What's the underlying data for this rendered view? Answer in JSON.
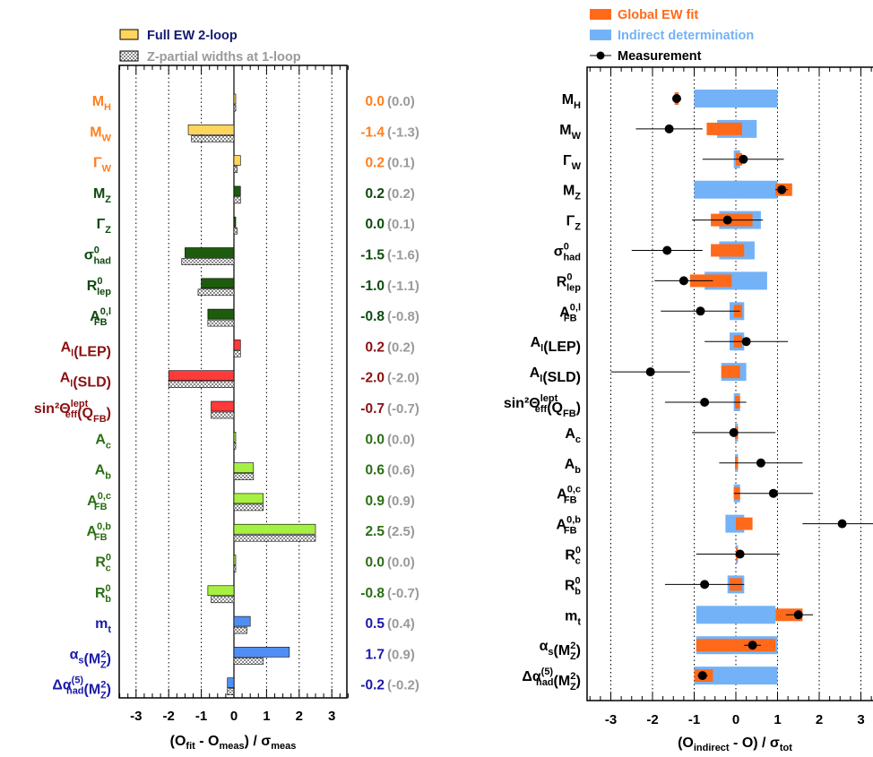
{
  "colors": {
    "higgs": "#ff7f1e",
    "wmass": "#ff7f1e",
    "zpole": "#0e4a0e",
    "lep_asym": "#8b1010",
    "heavy": "#2a6e12",
    "input": "#1a1aa8",
    "bar_orange_light": "#ffd55e",
    "bar_darkgreen": "#1d5c0c",
    "bar_red": "#ff3a3a",
    "bar_lightgreen": "#a6f043",
    "bar_blue": "#4f8ff5",
    "fit_orange": "#ff6a1a",
    "indirect_blue": "#74b2f7",
    "one_loop_gray": "#9a9a9a"
  },
  "chart_data": [
    {
      "type": "bar",
      "orientation": "horizontal",
      "legend": {
        "position": "top",
        "entries": [
          "Full EW 2-loop",
          "Z-partial widths at 1-loop"
        ]
      },
      "xlim": [
        -3.8,
        3.8
      ],
      "x_ticks": [
        "-3",
        "-2",
        "-1",
        "0",
        "1",
        "2",
        "3"
      ],
      "x_ticks_values": [
        -3,
        -2,
        -1,
        0,
        1,
        2,
        3
      ],
      "grid": "vertical dotted",
      "xlabel": {
        "main": "(O",
        "sub1": "fit",
        "mid": " - O",
        "sub2": "meas",
        "end": ") /  σ",
        "sub3": "meas"
      },
      "rows": [
        {
          "group": "higgs",
          "name": "M",
          "sub": "H",
          "sup": "",
          "after": "",
          "value": 0.0,
          "value_1loop": 0.0,
          "value_text": "0.0",
          "one_loop_text": "(0.0)",
          "bar_color": "bar_orange_light"
        },
        {
          "group": "wmass",
          "name": "M",
          "sub": "W",
          "sup": "",
          "after": "",
          "value": -1.4,
          "value_1loop": -1.3,
          "value_text": "-1.4",
          "one_loop_text": "(-1.3)",
          "bar_color": "bar_orange_light"
        },
        {
          "group": "wmass",
          "name": "Γ",
          "sub": "W",
          "sup": "",
          "after": "",
          "value": 0.2,
          "value_1loop": 0.1,
          "value_text": "0.2",
          "one_loop_text": "(0.1)",
          "bar_color": "bar_orange_light"
        },
        {
          "group": "zpole",
          "name": "M",
          "sub": "Z",
          "sup": "",
          "after": "",
          "value": 0.2,
          "value_1loop": 0.2,
          "value_text": "0.2",
          "one_loop_text": "(0.2)",
          "bar_color": "bar_darkgreen"
        },
        {
          "group": "zpole",
          "name": "Γ",
          "sub": "Z",
          "sup": "",
          "after": "",
          "value": 0.0,
          "value_1loop": 0.1,
          "value_text": "0.0",
          "one_loop_text": "(0.1)",
          "bar_color": "bar_darkgreen"
        },
        {
          "group": "zpole",
          "name": "σ",
          "sub": "had",
          "sup": "0",
          "after": "",
          "value": -1.5,
          "value_1loop": -1.6,
          "value_text": "-1.5",
          "one_loop_text": "(-1.6)",
          "bar_color": "bar_darkgreen"
        },
        {
          "group": "zpole",
          "name": "R",
          "sub": "lep",
          "sup": "0",
          "after": "",
          "value": -1.0,
          "value_1loop": -1.1,
          "value_text": "-1.0",
          "one_loop_text": "(-1.1)",
          "bar_color": "bar_darkgreen"
        },
        {
          "group": "zpole",
          "name": "A",
          "sub": "FB",
          "sup": "0,l",
          "after": "",
          "value": -0.8,
          "value_1loop": -0.8,
          "value_text": "-0.8",
          "one_loop_text": "(-0.8)",
          "bar_color": "bar_darkgreen"
        },
        {
          "group": "lep_asym",
          "name": "A",
          "sub": "l",
          "sup": "",
          "after": "(LEP)",
          "value": 0.2,
          "value_1loop": 0.2,
          "value_text": "0.2",
          "one_loop_text": "(0.2)",
          "bar_color": "bar_red"
        },
        {
          "group": "lep_asym",
          "name": "A",
          "sub": "l",
          "sup": "",
          "after": "(SLD)",
          "value": -2.0,
          "value_1loop": -2.0,
          "value_text": "-2.0",
          "one_loop_text": "(-2.0)",
          "bar_color": "bar_red"
        },
        {
          "group": "lep_asym",
          "name": "sin²Θ",
          "sub": "eff",
          "sup": "lept",
          "after": "(Q",
          "after_sub": "FB",
          "after_end": ")",
          "value": -0.7,
          "value_1loop": -0.7,
          "value_text": "-0.7",
          "one_loop_text": "(-0.7)",
          "bar_color": "bar_red"
        },
        {
          "group": "heavy",
          "name": "A",
          "sub": "c",
          "sup": "",
          "after": "",
          "value": 0.0,
          "value_1loop": 0.0,
          "value_text": "0.0",
          "one_loop_text": "(0.0)",
          "bar_color": "bar_lightgreen"
        },
        {
          "group": "heavy",
          "name": "A",
          "sub": "b",
          "sup": "",
          "after": "",
          "value": 0.6,
          "value_1loop": 0.6,
          "value_text": "0.6",
          "one_loop_text": "(0.6)",
          "bar_color": "bar_lightgreen"
        },
        {
          "group": "heavy",
          "name": "A",
          "sub": "FB",
          "sup": "0,c",
          "after": "",
          "value": 0.9,
          "value_1loop": 0.9,
          "value_text": "0.9",
          "one_loop_text": "(0.9)",
          "bar_color": "bar_lightgreen"
        },
        {
          "group": "heavy",
          "name": "A",
          "sub": "FB",
          "sup": "0,b",
          "after": "",
          "value": 2.5,
          "value_1loop": 2.5,
          "value_text": "2.5",
          "one_loop_text": "(2.5)",
          "bar_color": "bar_lightgreen"
        },
        {
          "group": "heavy",
          "name": "R",
          "sub": "c",
          "sup": "0",
          "after": "",
          "value": 0.0,
          "value_1loop": 0.0,
          "value_text": "0.0",
          "one_loop_text": "(0.0)",
          "bar_color": "bar_lightgreen"
        },
        {
          "group": "heavy",
          "name": "R",
          "sub": "b",
          "sup": "0",
          "after": "",
          "value": -0.8,
          "value_1loop": -0.7,
          "value_text": "-0.8",
          "one_loop_text": "(-0.7)",
          "bar_color": "bar_lightgreen"
        },
        {
          "group": "input",
          "name": "m",
          "sub": "t",
          "sup": "",
          "after": "",
          "value": 0.5,
          "value_1loop": 0.4,
          "value_text": "0.5",
          "one_loop_text": "(0.4)",
          "bar_color": "bar_blue"
        },
        {
          "group": "input",
          "name": "α",
          "sub": "s",
          "sup": "",
          "after": "(M",
          "after_sup": "2",
          "after_sub": "Z",
          "after_end": ")",
          "value": 1.7,
          "value_1loop": 0.9,
          "value_text": "1.7",
          "one_loop_text": "(0.9)",
          "bar_color": "bar_blue"
        },
        {
          "group": "input",
          "name": "Δα",
          "sub": "had",
          "sup": "(5)",
          "after": "(M",
          "after_sup": "2",
          "after_sub": "Z",
          "after_end": ")",
          "value": -0.2,
          "value_1loop": -0.2,
          "value_text": "-0.2",
          "one_loop_text": "(-0.2)",
          "bar_color": "bar_blue"
        }
      ]
    },
    {
      "type": "scatter",
      "orientation": "horizontal",
      "legend": {
        "position": "top",
        "entries": [
          "Global EW fit",
          "Indirect determination",
          "Measurement"
        ]
      },
      "xlim": [
        -3.8,
        3.8
      ],
      "x_ticks": [
        "-3",
        "-2",
        "-1",
        "0",
        "1",
        "2",
        "3"
      ],
      "x_ticks_values": [
        -3,
        -2,
        -1,
        0,
        1,
        2,
        3
      ],
      "grid": "vertical dotted",
      "xlabel": {
        "main": "(O",
        "sub1": "indirect",
        "mid": " - O) /  σ",
        "sub2": "tot"
      },
      "rows": [
        {
          "name": "M",
          "sub": "H",
          "sup": "",
          "after": "",
          "fit": [
            -1.47,
            -1.37
          ],
          "indirect": [
            -1.0,
            1.0
          ],
          "meas": -1.42,
          "meas_err": [
            -1.45,
            -1.39
          ]
        },
        {
          "name": "M",
          "sub": "W",
          "sup": "",
          "after": "",
          "fit": [
            -0.7,
            0.15
          ],
          "indirect": [
            -0.45,
            0.5
          ],
          "meas": -1.6,
          "meas_err": [
            -2.4,
            -0.8
          ]
        },
        {
          "name": "Γ",
          "sub": "W",
          "sup": "",
          "after": "",
          "fit": [
            0.0,
            0.15
          ],
          "indirect": [
            -0.05,
            0.1
          ],
          "meas": 0.18,
          "meas_err": [
            -0.8,
            1.15
          ]
        },
        {
          "name": "M",
          "sub": "Z",
          "sup": "",
          "after": "",
          "fit": [
            0.95,
            1.35
          ],
          "indirect": [
            -1.0,
            1.0
          ],
          "meas": 1.1,
          "meas_err": [
            0.95,
            1.25
          ]
        },
        {
          "name": "Γ",
          "sub": "Z",
          "sup": "",
          "after": "",
          "fit": [
            -0.6,
            0.4
          ],
          "indirect": [
            -0.4,
            0.6
          ],
          "meas": -0.2,
          "meas_err": [
            -1.05,
            0.65
          ]
        },
        {
          "name": "σ",
          "sub": "had",
          "sup": "0",
          "after": "",
          "fit": [
            -0.6,
            0.2
          ],
          "indirect": [
            -0.4,
            0.45
          ],
          "meas": -1.65,
          "meas_err": [
            -2.5,
            -0.8
          ]
        },
        {
          "name": "R",
          "sub": "lep",
          "sup": "0",
          "after": "",
          "fit": [
            -1.1,
            -0.1
          ],
          "indirect": [
            -0.75,
            0.75
          ],
          "meas": -1.25,
          "meas_err": [
            -1.95,
            -0.55
          ]
        },
        {
          "name": "A",
          "sub": "FB",
          "sup": "0,l",
          "after": "",
          "fit": [
            -0.05,
            0.15
          ],
          "indirect": [
            -0.15,
            0.2
          ],
          "meas": -0.85,
          "meas_err": [
            -1.8,
            0.1
          ]
        },
        {
          "name": "A",
          "sub": "l",
          "sup": "",
          "after": "(LEP)",
          "fit": [
            -0.05,
            0.15
          ],
          "indirect": [
            -0.15,
            0.2
          ],
          "meas": 0.25,
          "meas_err": [
            -0.75,
            1.25
          ]
        },
        {
          "name": "A",
          "sub": "l",
          "sup": "",
          "after": "(SLD)",
          "fit": [
            -0.35,
            0.1
          ],
          "indirect": [
            -0.35,
            0.25
          ],
          "meas": -2.05,
          "meas_err": [
            -3.0,
            -1.1
          ]
        },
        {
          "name": "sin²Θ",
          "sub": "eff",
          "sup": "lept",
          "after": "(Q",
          "after_sub": "FB",
          "after_end": ")",
          "fit": [
            -0.02,
            0.1
          ],
          "indirect": [
            -0.05,
            0.1
          ],
          "meas": -0.75,
          "meas_err": [
            -1.7,
            0.25
          ]
        },
        {
          "name": "A",
          "sub": "c",
          "sup": "",
          "after": "",
          "fit": [
            -0.02,
            0.05
          ],
          "indirect": [
            -0.02,
            0.05
          ],
          "meas": -0.05,
          "meas_err": [
            -1.05,
            0.95
          ]
        },
        {
          "name": "A",
          "sub": "b",
          "sup": "",
          "after": "",
          "fit": [
            -0.02,
            0.05
          ],
          "indirect": [
            -0.02,
            0.05
          ],
          "meas": 0.6,
          "meas_err": [
            -0.4,
            1.6
          ]
        },
        {
          "name": "A",
          "sub": "FB",
          "sup": "0,c",
          "after": "",
          "fit": [
            -0.05,
            0.1
          ],
          "indirect": [
            -0.05,
            0.1
          ],
          "meas": 0.9,
          "meas_err": [
            -0.05,
            1.85
          ]
        },
        {
          "name": "A",
          "sub": "FB",
          "sup": "0,b",
          "after": "",
          "fit": [
            0.0,
            0.4
          ],
          "indirect": [
            -0.25,
            0.2
          ],
          "meas": 2.55,
          "meas_err": [
            1.6,
            3.5
          ]
        },
        {
          "name": "R",
          "sub": "c",
          "sup": "0",
          "after": "",
          "fit": [
            0.0,
            0.05
          ],
          "indirect": [
            0.0,
            0.05
          ],
          "meas": 0.1,
          "meas_err": [
            -0.95,
            1.05
          ]
        },
        {
          "name": "R",
          "sub": "b",
          "sup": "0",
          "after": "",
          "fit": [
            -0.15,
            0.15
          ],
          "indirect": [
            -0.2,
            0.2
          ],
          "meas": -0.75,
          "meas_err": [
            -1.7,
            0.2
          ]
        },
        {
          "name": "m",
          "sub": "t",
          "sup": "",
          "after": "",
          "fit": [
            0.95,
            1.6
          ],
          "indirect": [
            -0.95,
            0.95
          ],
          "meas": 1.5,
          "meas_err": [
            1.2,
            1.85
          ]
        },
        {
          "name": "α",
          "sub": "s",
          "sup": "",
          "after": "(M",
          "after_sup": "2",
          "after_sub": "Z",
          "after_end": ")",
          "fit": [
            -0.95,
            0.95
          ],
          "indirect": [
            -0.95,
            1.0
          ],
          "meas": 0.4,
          "meas_err": [
            0.2,
            0.6
          ]
        },
        {
          "name": "Δα",
          "sub": "had",
          "sup": "(5)",
          "after": "(M",
          "after_sup": "2",
          "after_sub": "Z",
          "after_end": ")",
          "fit": [
            -1.0,
            -0.55
          ],
          "indirect": [
            -1.0,
            1.0
          ],
          "meas": -0.8,
          "meas_err": [
            -0.92,
            -0.68
          ]
        }
      ]
    }
  ]
}
